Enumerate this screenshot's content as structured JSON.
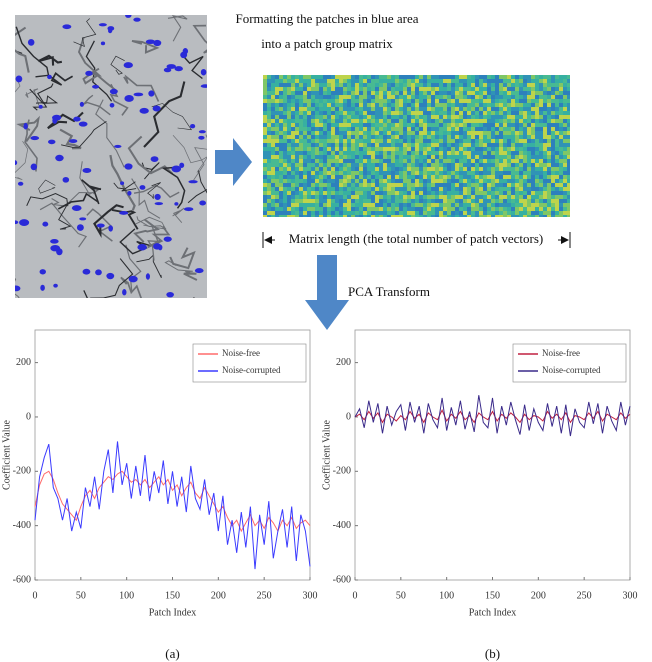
{
  "figure": {
    "title_lines": [
      "Formatting the patches in blue area",
      "into a patch group matrix"
    ],
    "matrix_label": "Matrix length (the total number of patch vectors)",
    "transform_label": "PCA Transform"
  },
  "chart_data": [
    {
      "type": "line",
      "caption": "(a)",
      "x_label": "Patch Index",
      "y_label": "Coefficient Value",
      "xlim": [
        0,
        300
      ],
      "xticks": [
        0,
        50,
        100,
        150,
        200,
        250,
        300
      ],
      "ylim": [
        -600,
        320
      ],
      "yticks": [
        200,
        0,
        -200,
        -400,
        -600
      ],
      "legend": "upper right",
      "x": [
        0,
        5,
        10,
        15,
        20,
        25,
        30,
        35,
        40,
        45,
        50,
        55,
        60,
        65,
        70,
        75,
        80,
        85,
        90,
        95,
        100,
        105,
        110,
        115,
        120,
        125,
        130,
        135,
        140,
        145,
        150,
        155,
        160,
        165,
        170,
        175,
        180,
        185,
        190,
        195,
        200,
        205,
        210,
        215,
        220,
        225,
        230,
        235,
        240,
        245,
        250,
        255,
        260,
        265,
        270,
        275,
        280,
        285,
        290,
        295,
        300
      ],
      "series": [
        {
          "name": "Noise-free",
          "color": "#ff6b6b",
          "values": [
            -330,
            -250,
            -210,
            -200,
            -230,
            -280,
            -320,
            -340,
            -360,
            -380,
            -330,
            -290,
            -270,
            -300,
            -260,
            -240,
            -220,
            -230,
            -210,
            -200,
            -220,
            -240,
            -230,
            -250,
            -230,
            -260,
            -240,
            -220,
            -250,
            -230,
            -270,
            -250,
            -290,
            -260,
            -240,
            -280,
            -300,
            -260,
            -290,
            -320,
            -350,
            -330,
            -370,
            -400,
            -380,
            -420,
            -390,
            -360,
            -400,
            -380,
            -410,
            -370,
            -390,
            -420,
            -380,
            -400,
            -370,
            -410,
            -390,
            -380,
            -400
          ]
        },
        {
          "name": "Noise-corrupted",
          "color": "#3b3bff",
          "values": [
            -380,
            -220,
            -150,
            -100,
            -260,
            -300,
            -380,
            -300,
            -420,
            -350,
            -410,
            -260,
            -330,
            -220,
            -340,
            -200,
            -120,
            -280,
            -90,
            -250,
            -170,
            -300,
            -180,
            -290,
            -140,
            -310,
            -200,
            -280,
            -160,
            -320,
            -200,
            -330,
            -220,
            -350,
            -180,
            -300,
            -340,
            -230,
            -360,
            -280,
            -420,
            -290,
            -470,
            -380,
            -500,
            -350,
            -480,
            -330,
            -560,
            -360,
            -470,
            -310,
            -520,
            -420,
            -340,
            -480,
            -330,
            -530,
            -360,
            -420,
            -550
          ]
        }
      ]
    },
    {
      "type": "line",
      "caption": "(b)",
      "x_label": "Patch Index",
      "y_label": "Coefficient Value",
      "xlim": [
        0,
        300
      ],
      "xticks": [
        0,
        50,
        100,
        150,
        200,
        250,
        300
      ],
      "ylim": [
        -600,
        320
      ],
      "yticks": [
        200,
        0,
        -200,
        -400,
        -600
      ],
      "legend": "upper right",
      "x": [
        0,
        5,
        10,
        15,
        20,
        25,
        30,
        35,
        40,
        45,
        50,
        55,
        60,
        65,
        70,
        75,
        80,
        85,
        90,
        95,
        100,
        105,
        110,
        115,
        120,
        125,
        130,
        135,
        140,
        145,
        150,
        155,
        160,
        165,
        170,
        175,
        180,
        185,
        190,
        195,
        200,
        205,
        210,
        215,
        220,
        225,
        230,
        235,
        240,
        245,
        250,
        255,
        260,
        265,
        270,
        275,
        280,
        285,
        290,
        295,
        300
      ],
      "series": [
        {
          "name": "Noise-free",
          "color": "#c02040",
          "values": [
            0,
            10,
            -10,
            20,
            -5,
            15,
            -20,
            10,
            0,
            -15,
            5,
            -10,
            20,
            -5,
            10,
            -20,
            15,
            0,
            -10,
            25,
            -15,
            10,
            -5,
            20,
            -10,
            5,
            -20,
            15,
            0,
            -10,
            20,
            -15,
            10,
            -5,
            15,
            0,
            -20,
            10,
            -10,
            5,
            0,
            -15,
            20,
            -5,
            10,
            -10,
            15,
            -20,
            5,
            0,
            -10,
            15,
            -5,
            20,
            -15,
            10,
            0,
            -10,
            15,
            -5,
            10
          ]
        },
        {
          "name": "Noise-corrupted",
          "color": "#3a2a8a",
          "values": [
            0,
            30,
            -40,
            60,
            -20,
            50,
            -60,
            40,
            -30,
            20,
            45,
            -50,
            55,
            -20,
            40,
            -60,
            50,
            -10,
            -40,
            70,
            -50,
            35,
            -30,
            60,
            -45,
            20,
            -55,
            80,
            -20,
            -40,
            70,
            -60,
            40,
            -30,
            55,
            -10,
            -65,
            45,
            -50,
            30,
            -20,
            -50,
            50,
            -35,
            40,
            -60,
            45,
            -70,
            30,
            -20,
            -40,
            55,
            -25,
            50,
            -60,
            40,
            -15,
            -50,
            55,
            -30,
            40
          ]
        }
      ]
    }
  ]
}
